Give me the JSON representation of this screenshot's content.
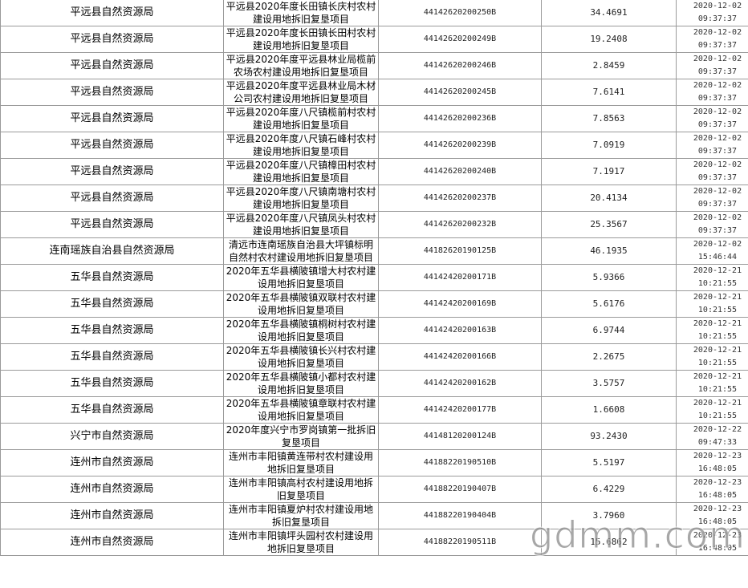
{
  "table": {
    "rows": [
      [
        "平远县自然资源局",
        "平远县2020年度长田镇长庆村农村建设用地拆旧复垦项目",
        "44142620200250B",
        "34.4691",
        "2020-12-02 09:37:37"
      ],
      [
        "平远县自然资源局",
        "平远县2020年度长田镇长田村农村建设用地拆旧复垦项目",
        "44142620200249B",
        "19.2408",
        "2020-12-02 09:37:37"
      ],
      [
        "平远县自然资源局",
        "平远县2020年度平远县林业局榄前农场农村建设用地拆旧复垦项目",
        "44142620200246B",
        "2.8459",
        "2020-12-02 09:37:37"
      ],
      [
        "平远县自然资源局",
        "平远县2020年度平远县林业局木材公司农村建设用地拆旧复垦项目",
        "44142620200245B",
        "7.6141",
        "2020-12-02 09:37:37"
      ],
      [
        "平远县自然资源局",
        "平远县2020年度八尺镇榄前村农村建设用地拆旧复垦项目",
        "44142620200236B",
        "7.8563",
        "2020-12-02 09:37:37"
      ],
      [
        "平远县自然资源局",
        "平远县2020年度八尺镇石峰村农村建设用地拆旧复垦项目",
        "44142620200239B",
        "7.0919",
        "2020-12-02 09:37:37"
      ],
      [
        "平远县自然资源局",
        "平远县2020年度八尺镇樟田村农村建设用地拆旧复垦项目",
        "44142620200240B",
        "7.1917",
        "2020-12-02 09:37:37"
      ],
      [
        "平远县自然资源局",
        "平远县2020年度八尺镇南塘村农村建设用地拆旧复垦项目",
        "44142620200237B",
        "20.4134",
        "2020-12-02 09:37:37"
      ],
      [
        "平远县自然资源局",
        "平远县2020年度八尺镇凤头村农村建设用地拆旧复垦项目",
        "44142620200232B",
        "25.3567",
        "2020-12-02 09:37:37"
      ],
      [
        "连南瑶族自治县自然资源局",
        "清远市连南瑶族自治县大坪镇标明自然村农村建设用地拆旧复垦项目",
        "44182620190125B",
        "46.1935",
        "2020-12-02 15:46:44"
      ],
      [
        "五华县自然资源局",
        "2020年五华县横陂镇增大村农村建设用地拆旧复垦项目",
        "44142420200171B",
        "5.9366",
        "2020-12-21 10:21:55"
      ],
      [
        "五华县自然资源局",
        "2020年五华县横陂镇双联村农村建设用地拆旧复垦项目",
        "44142420200169B",
        "5.6176",
        "2020-12-21 10:21:55"
      ],
      [
        "五华县自然资源局",
        "2020年五华县横陂镇桐树村农村建设用地拆旧复垦项目",
        "44142420200163B",
        "6.9744",
        "2020-12-21 10:21:55"
      ],
      [
        "五华县自然资源局",
        "2020年五华县横陂镇长兴村农村建设用地拆旧复垦项目",
        "44142420200166B",
        "2.2675",
        "2020-12-21 10:21:55"
      ],
      [
        "五华县自然资源局",
        "2020年五华县横陂镇小都村农村建设用地拆旧复垦项目",
        "44142420200162B",
        "3.5757",
        "2020-12-21 10:21:55"
      ],
      [
        "五华县自然资源局",
        "2020年五华县横陂镇章联村农村建设用地拆旧复垦项目",
        "44142420200177B",
        "1.6608",
        "2020-12-21 10:21:55"
      ],
      [
        "兴宁市自然资源局",
        "2020年度兴宁市罗岗镇第一批拆旧复垦项目",
        "44148120200124B",
        "93.2430",
        "2020-12-22 09:47:33"
      ],
      [
        "连州市自然资源局",
        "连州市丰阳镇黄连带村农村建设用地拆旧复垦项目",
        "44188220190510B",
        "5.5197",
        "2020-12-23 16:48:05"
      ],
      [
        "连州市自然资源局",
        "连州市丰阳镇高村农村建设用地拆旧复垦项目",
        "44188220190407B",
        "6.4229",
        "2020-12-23 16:48:05"
      ],
      [
        "连州市自然资源局",
        "连州市丰阳镇夏炉村农村建设用地拆旧复垦项目",
        "44188220190404B",
        "3.7960",
        "2020-12-23 16:48:05"
      ],
      [
        "连州市自然资源局",
        "连州市丰阳镇坪头园村农村建设用地拆旧复垦项目",
        "44188220190511B",
        "15.6862",
        "2020-12-23 16:48:05"
      ]
    ]
  },
  "watermark": "gdmm.com"
}
